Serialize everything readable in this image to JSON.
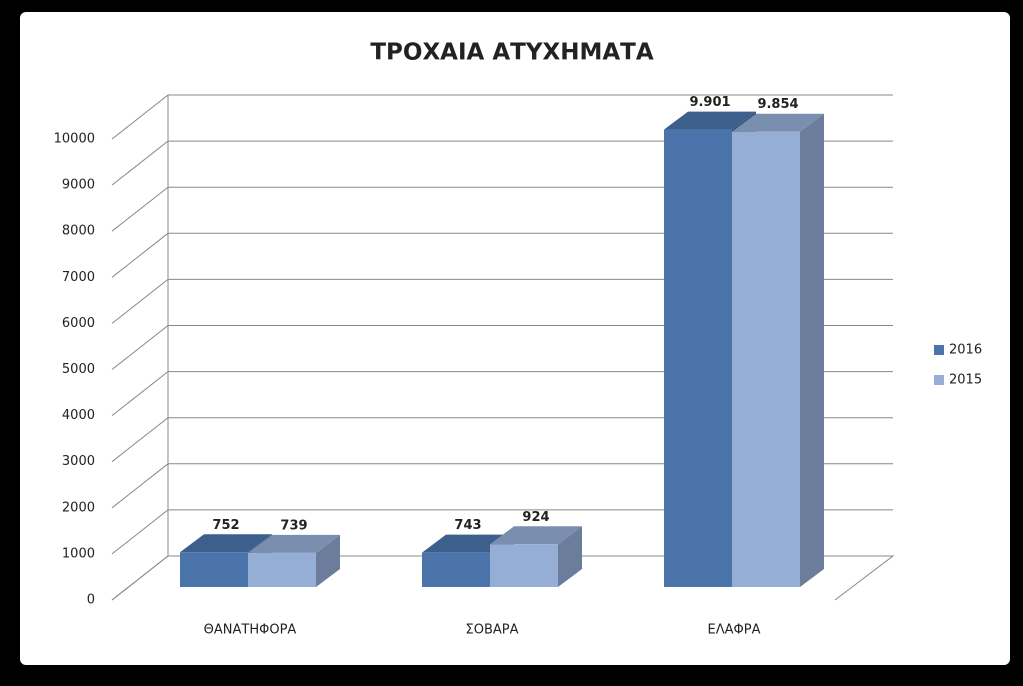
{
  "chart_data": {
    "type": "bar",
    "title": "ΤΡΟΧΑΙΑ ΑΤΥΧΗΜΑΤΑ",
    "categories": [
      "ΘΑΝΑΤΗΦΟΡΑ",
      "ΣΟΒΑΡΑ",
      "ΕΛΑΦΡΑ"
    ],
    "series": [
      {
        "name": "2016",
        "color": "#4a74aa",
        "values": [
          752,
          743,
          9901
        ],
        "value_labels": [
          "752",
          "743",
          "9.901"
        ]
      },
      {
        "name": "2015",
        "color": "#95aed6",
        "values": [
          739,
          924,
          9854
        ],
        "value_labels": [
          "739",
          "924",
          "9.854"
        ]
      }
    ],
    "ylim": [
      0,
      10000
    ],
    "yticks": [
      0,
      1000,
      2000,
      3000,
      4000,
      5000,
      6000,
      7000,
      8000,
      9000,
      10000
    ],
    "grid": true,
    "legend": "right"
  }
}
